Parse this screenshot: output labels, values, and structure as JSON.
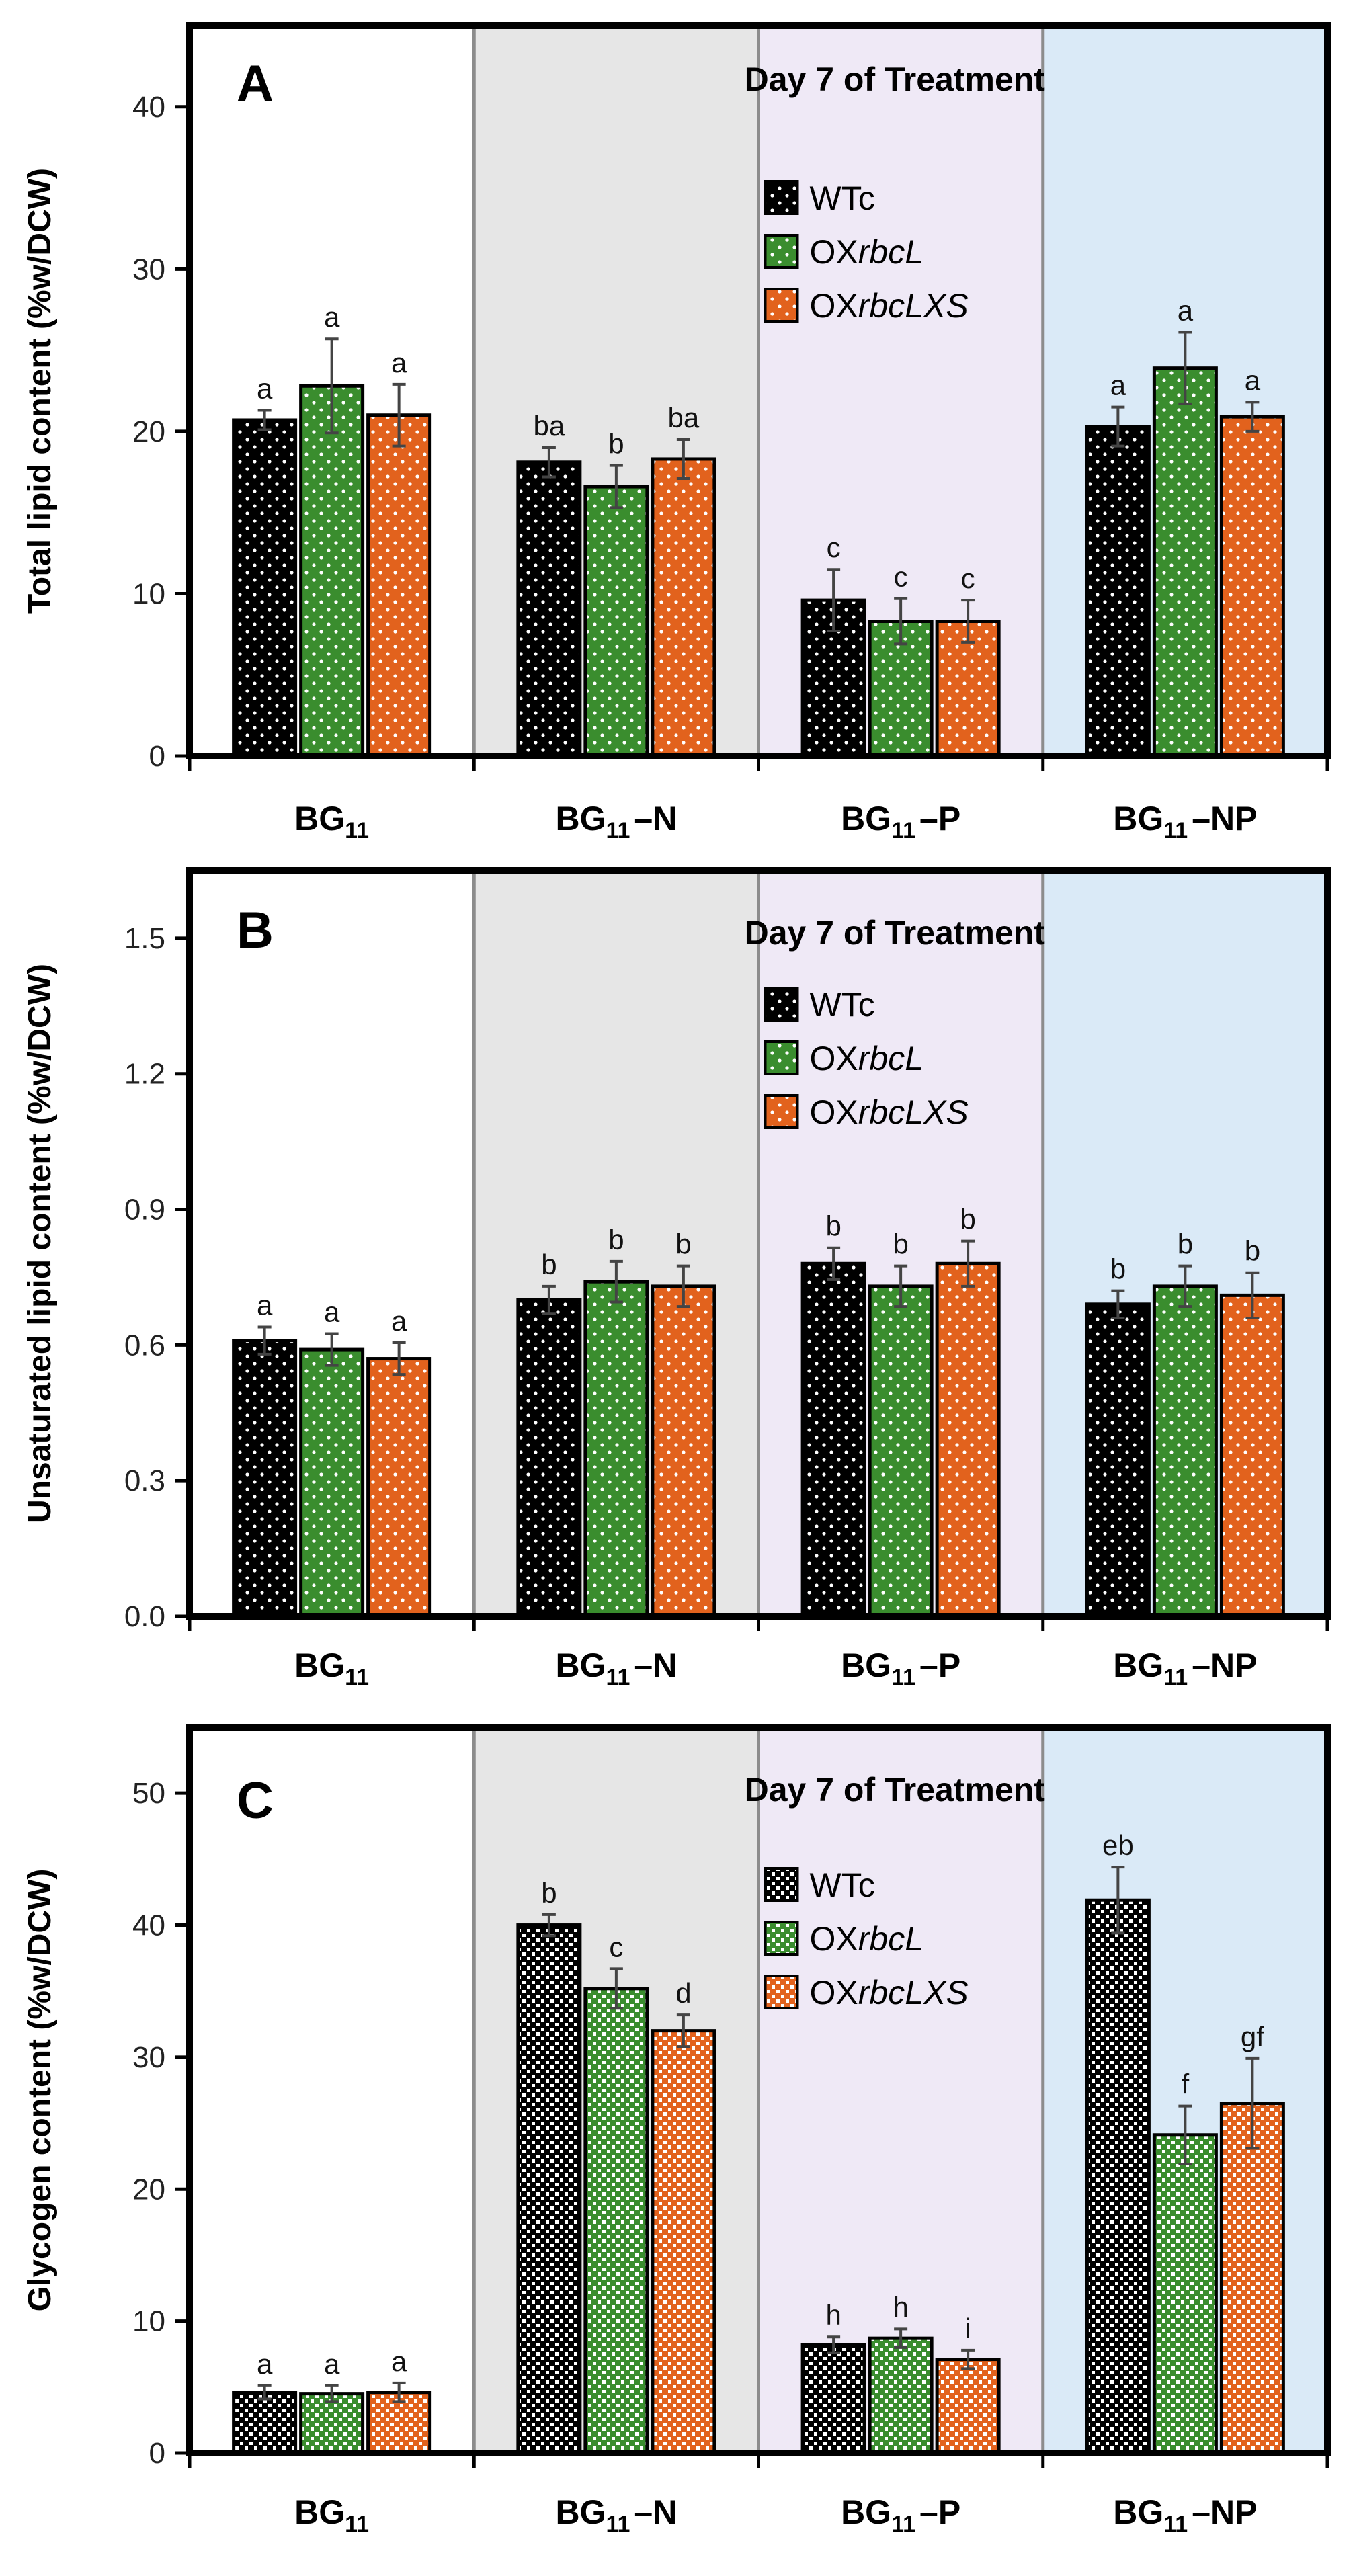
{
  "legend": [
    {
      "prefix": "WTc",
      "italic": "",
      "color": "#000000"
    },
    {
      "prefix": "OX",
      "italic": "rbcL",
      "color": "#3a8d2e"
    },
    {
      "prefix": "OX",
      "italic": "rbcLXS",
      "color": "#e2621d"
    }
  ],
  "categories": [
    {
      "base": "BG",
      "sub": "11",
      "suffix": ""
    },
    {
      "base": "BG",
      "sub": "11",
      "suffix": "–N"
    },
    {
      "base": "BG",
      "sub": "11",
      "suffix": "–P"
    },
    {
      "base": "BG",
      "sub": "11",
      "suffix": "–NP"
    }
  ],
  "colors": {
    "bg_white": "#ffffff",
    "bg_gray": "#e6e6e6",
    "bg_lavender": "#efe9f6",
    "bg_blue": "#daeaf7",
    "divider": "#8c8c8c",
    "frame": "#000000"
  },
  "chart_data": [
    {
      "type": "bar",
      "panel_label": "A",
      "title": "Day 7 of Treatment",
      "ylabel": "Total lipid content (%w/DCW)",
      "ylim": [
        0,
        45
      ],
      "yticks": [
        "0",
        "10",
        "20",
        "30",
        "40"
      ],
      "ytick_values": [
        0,
        10,
        20,
        30,
        40
      ],
      "pattern": "dots",
      "categories": [
        "BG11",
        "BG11–N",
        "BG11–P",
        "BG11–NP"
      ],
      "series": [
        {
          "name": "WTc",
          "values": [
            20.7,
            18.1,
            9.6,
            20.3
          ],
          "errors": [
            0.6,
            0.9,
            1.9,
            1.2
          ],
          "letters": [
            "a",
            "ba",
            "c",
            "a"
          ]
        },
        {
          "name": "OXrbcL",
          "values": [
            22.8,
            16.6,
            8.3,
            23.9
          ],
          "errors": [
            2.9,
            1.3,
            1.4,
            2.2
          ],
          "letters": [
            "a",
            "b",
            "c",
            "a"
          ]
        },
        {
          "name": "OXrbcLXS",
          "values": [
            21.0,
            18.3,
            8.3,
            20.9
          ],
          "errors": [
            1.9,
            1.2,
            1.3,
            0.9
          ],
          "letters": [
            "a",
            "ba",
            "c",
            "a"
          ]
        }
      ]
    },
    {
      "type": "bar",
      "panel_label": "B",
      "title": "Day 7 of Treatment",
      "ylabel": "Unsaturated lipid content (%w/DCW)",
      "ylim": [
        0,
        1.65
      ],
      "yticks": [
        "0.0",
        "0.3",
        "0.6",
        "0.9",
        "1.2",
        "1.5"
      ],
      "ytick_values": [
        0,
        0.3,
        0.6,
        0.9,
        1.2,
        1.5
      ],
      "pattern": "dots",
      "categories": [
        "BG11",
        "BG11–N",
        "BG11–P",
        "BG11–NP"
      ],
      "series": [
        {
          "name": "WTc",
          "values": [
            0.61,
            0.7,
            0.78,
            0.69
          ],
          "errors": [
            0.03,
            0.03,
            0.035,
            0.03
          ],
          "letters": [
            "a",
            "b",
            "b",
            "b"
          ]
        },
        {
          "name": "OXrbcL",
          "values": [
            0.59,
            0.74,
            0.73,
            0.73
          ],
          "errors": [
            0.035,
            0.045,
            0.045,
            0.045
          ],
          "letters": [
            "a",
            "b",
            "b",
            "b"
          ]
        },
        {
          "name": "OXrbcLXS",
          "values": [
            0.57,
            0.73,
            0.78,
            0.71
          ],
          "errors": [
            0.035,
            0.045,
            0.05,
            0.05
          ],
          "letters": [
            "a",
            "b",
            "b",
            "b"
          ]
        }
      ]
    },
    {
      "type": "bar",
      "panel_label": "C",
      "title": "Day 7 of Treatment",
      "ylabel": "Glycogen content (%w/DCW)",
      "ylim": [
        0,
        55
      ],
      "yticks": [
        "0",
        "10",
        "20",
        "30",
        "40",
        "50"
      ],
      "ytick_values": [
        0,
        10,
        20,
        30,
        40,
        50
      ],
      "pattern": "checker",
      "categories": [
        "BG11",
        "BG11–N",
        "BG11–P",
        "BG11–NP"
      ],
      "series": [
        {
          "name": "WTc",
          "values": [
            4.6,
            40.0,
            8.2,
            41.9
          ],
          "errors": [
            0.5,
            0.8,
            0.6,
            2.5
          ],
          "letters": [
            "a",
            "b",
            "h",
            "eb"
          ]
        },
        {
          "name": "OXrbcL",
          "values": [
            4.5,
            35.2,
            8.7,
            24.1
          ],
          "errors": [
            0.6,
            1.5,
            0.7,
            2.2
          ],
          "letters": [
            "a",
            "c",
            "h",
            "f"
          ]
        },
        {
          "name": "OXrbcLXS",
          "values": [
            4.6,
            32.0,
            7.1,
            26.5
          ],
          "errors": [
            0.7,
            1.2,
            0.7,
            3.4
          ],
          "letters": [
            "a",
            "d",
            "i",
            "gf"
          ]
        }
      ]
    }
  ]
}
